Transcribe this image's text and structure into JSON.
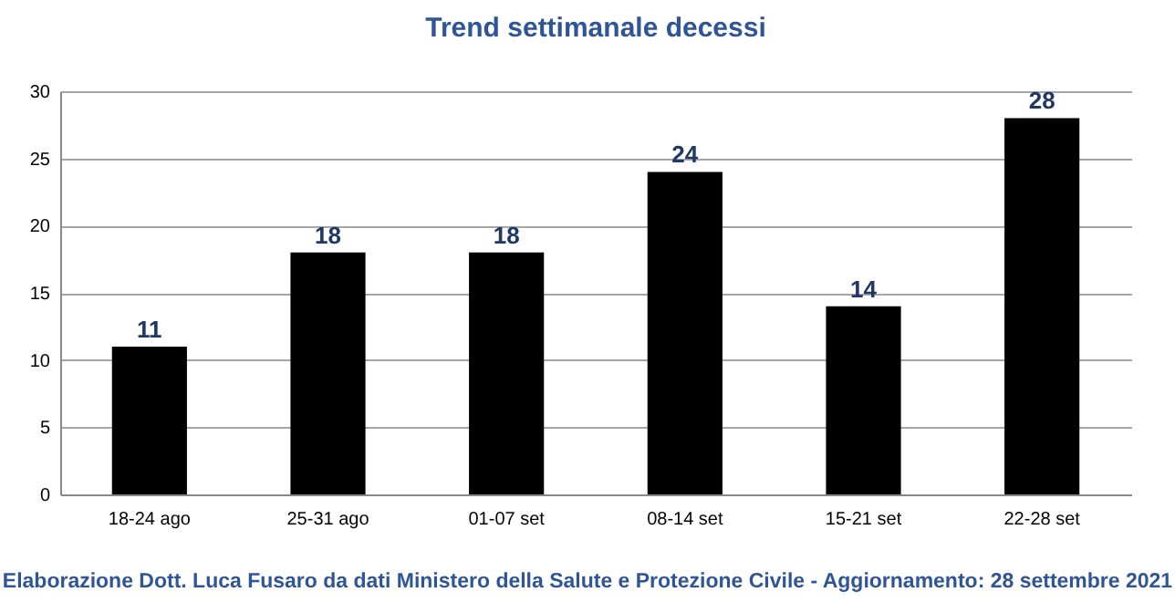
{
  "chart_data": {
    "type": "bar",
    "title": "Trend settimanale decessi",
    "categories": [
      "18-24 ago",
      "25-31 ago",
      "01-07 set",
      "08-14 set",
      "15-21 set",
      "22-28 set"
    ],
    "values": [
      11,
      18,
      18,
      24,
      14,
      28
    ],
    "color": "#000000",
    "ylim": [
      0,
      30
    ],
    "yticks": [
      0,
      5,
      10,
      15,
      20,
      25,
      30
    ],
    "grid": "y",
    "data_labels": true,
    "annotations": [
      "Elaborazione Dott. Luca Fusaro da dati Ministero della Salute e Protezione Civile - Aggiornamento: 28 settembre 2021"
    ]
  }
}
